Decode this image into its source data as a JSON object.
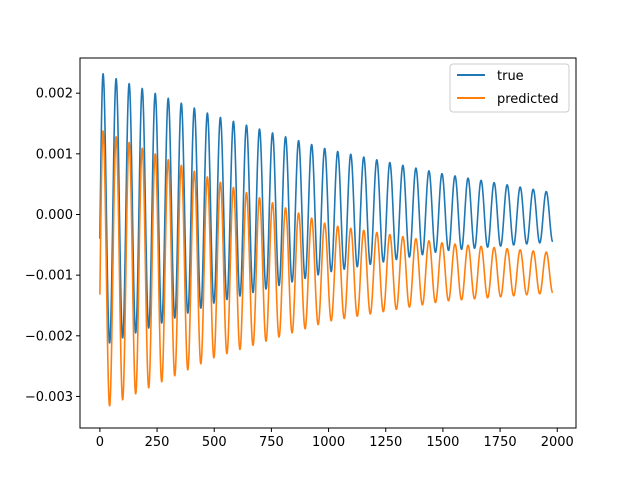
{
  "chart_data": {
    "type": "line",
    "grid": false,
    "legend_position": "top-right",
    "xlim": [
      -87,
      2082
    ],
    "ylim": [
      -0.00352,
      0.00258
    ],
    "xticks": [
      0,
      250,
      500,
      750,
      1000,
      1250,
      1500,
      1750,
      2000
    ],
    "xtick_labels": [
      "0",
      "250",
      "500",
      "750",
      "1000",
      "1250",
      "1500",
      "1750",
      "2000"
    ],
    "yticks": [
      -0.003,
      -0.002,
      -0.001,
      0.0,
      0.001,
      0.002
    ],
    "ytick_labels": [
      "−0.003",
      "−0.002",
      "−0.001",
      "0.000",
      "0.001",
      "0.002"
    ],
    "series": [
      {
        "name": "true",
        "color": "#1f77b4",
        "x_range": [
          0,
          1980
        ],
        "period": 57,
        "first_peak": 14,
        "decay": 0.00095,
        "envelope": [
          [
            0,
            0.00234,
            -0.00218
          ],
          [
            500,
            0.00163,
            -0.00146
          ],
          [
            1000,
            0.00107,
            -0.00095
          ],
          [
            1500,
            0.00067,
            -0.0006
          ],
          [
            1980,
            0.00036,
            -0.00045
          ]
        ],
        "start": -0.0004,
        "end": -0.00032
      },
      {
        "name": "predicted",
        "color": "#ff7f0e",
        "x_range": [
          0,
          1980
        ],
        "period": 57,
        "first_peak": 14,
        "envelope": [
          [
            0,
            0.0014,
            -0.00323
          ],
          [
            500,
            0.00057,
            -0.00236
          ],
          [
            1000,
            -0.00017,
            -0.00176
          ],
          [
            1500,
            -0.00047,
            -0.00143
          ],
          [
            1980,
            -0.00063,
            -0.00129
          ]
        ],
        "start": -0.00132,
        "end": -0.00128
      }
    ]
  }
}
